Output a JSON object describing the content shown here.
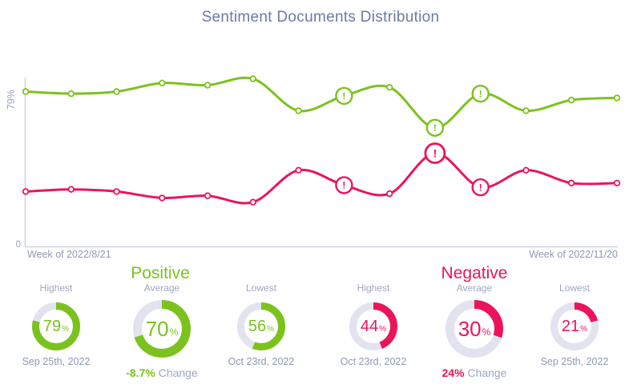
{
  "percent_sign": "%",
  "chart_data": {
    "type": "line",
    "title": "Sentiment Documents Distribution",
    "x_axis": {
      "start_label": "Week of 2022/8/21",
      "end_label": "Week of 2022/11/20",
      "points": 14
    },
    "y_axis": {
      "top_label": "79%",
      "bottom_label": "0",
      "min": 0,
      "max_shown": 79
    },
    "grid": false,
    "series": [
      {
        "name": "Positive",
        "color": "#7cc21e",
        "values": [
          73,
          72,
          73,
          77,
          76,
          79,
          64,
          71,
          75,
          56,
          72,
          64,
          69,
          70
        ],
        "alert_indices": [
          7,
          9,
          10
        ]
      },
      {
        "name": "Negative",
        "color": "#ec1459",
        "values": [
          26,
          27,
          26,
          23,
          24,
          21,
          36,
          29,
          25,
          44,
          28,
          36,
          30,
          30
        ],
        "alert_indices": [
          7,
          9,
          10
        ],
        "emphasized_alert_index": 9
      }
    ]
  },
  "stats": {
    "positive": {
      "heading": "Positive",
      "color": "#7cc21e",
      "cards": [
        {
          "label": "Highest",
          "value": "79",
          "unit": "%",
          "caption": "Sep 25th, 2022",
          "size": "small"
        },
        {
          "label": "Average",
          "value": "70",
          "unit": "%",
          "change_value": "-8.7%",
          "change_label": "Change",
          "size": "large"
        },
        {
          "label": "Lowest",
          "value": "56",
          "unit": "%",
          "caption": "Oct 23rd, 2022",
          "size": "small"
        }
      ]
    },
    "negative": {
      "heading": "Negative",
      "color": "#ec1459",
      "cards": [
        {
          "label": "Highest",
          "value": "44",
          "unit": "%",
          "caption": "Oct 23rd, 2022",
          "size": "small"
        },
        {
          "label": "Average",
          "value": "30",
          "unit": "%",
          "change_value": "24%",
          "change_label": "Change",
          "size": "large"
        },
        {
          "label": "Lowest",
          "value": "21",
          "unit": "%",
          "caption": "Sep 25th, 2022",
          "size": "small"
        }
      ]
    }
  }
}
